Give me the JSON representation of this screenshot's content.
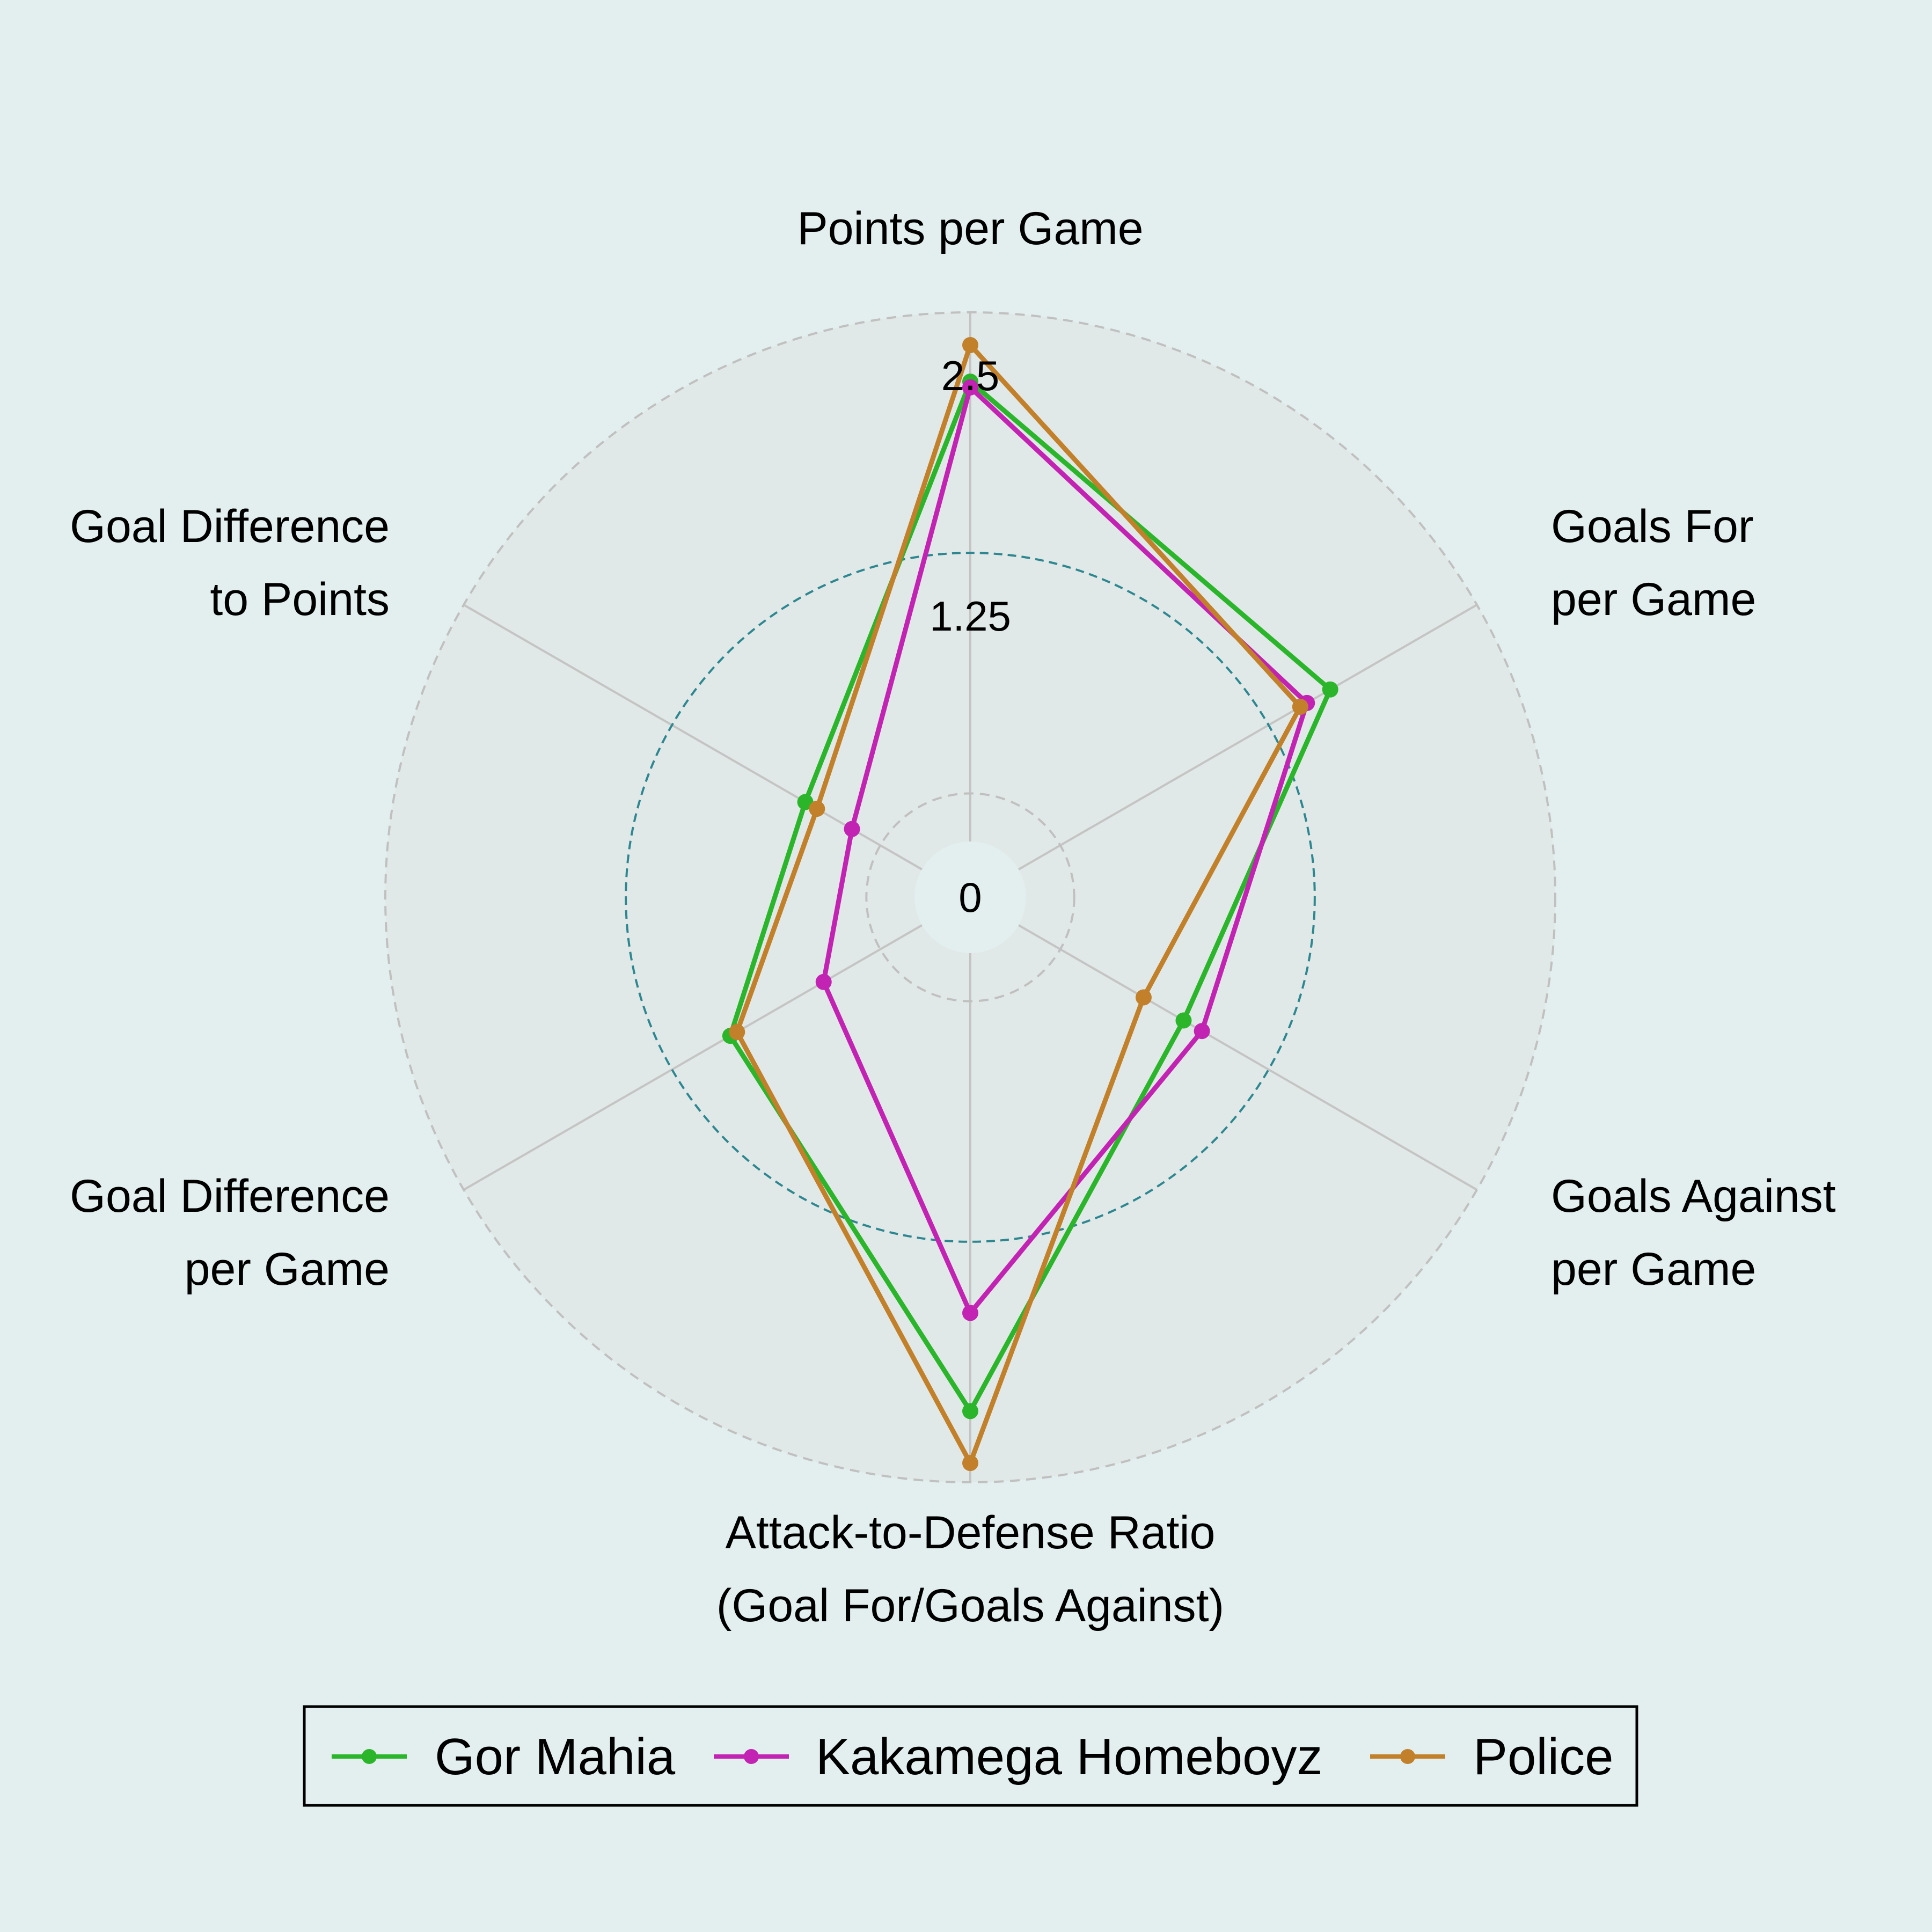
{
  "chart_data": {
    "type": "radar",
    "title": "",
    "axes": [
      [
        "Points per Game"
      ],
      [
        "Goals For",
        "per Game"
      ],
      [
        "Goals Against",
        "per Game"
      ],
      [
        "Attack-to-Defense Ratio",
        "(Goal For/Goals Against)"
      ],
      [
        "Goal Difference",
        "per Game"
      ],
      [
        "Goal Difference",
        "to Points"
      ]
    ],
    "radial_ticks": [
      {
        "value": 0,
        "label": "0"
      },
      {
        "value": 1.25,
        "label": "1.25"
      },
      {
        "value": 2.5,
        "label": "2.5"
      }
    ],
    "radial_range": [
      -0.25,
      2.5
    ],
    "series": [
      {
        "name": "Gor Mahia",
        "color": "#2bb52b",
        "values": [
          2.14,
          1.62,
          0.74,
          2.13,
          0.9,
          0.45
        ]
      },
      {
        "name": "Kakamega Homeboyz",
        "color": "#c223b2",
        "values": [
          2.11,
          1.48,
          0.85,
          1.62,
          0.34,
          0.17
        ]
      },
      {
        "name": "Police",
        "color": "#c18029",
        "values": [
          2.33,
          1.44,
          0.5,
          2.4,
          0.86,
          0.38
        ]
      }
    ],
    "legend_position": "bottom"
  }
}
